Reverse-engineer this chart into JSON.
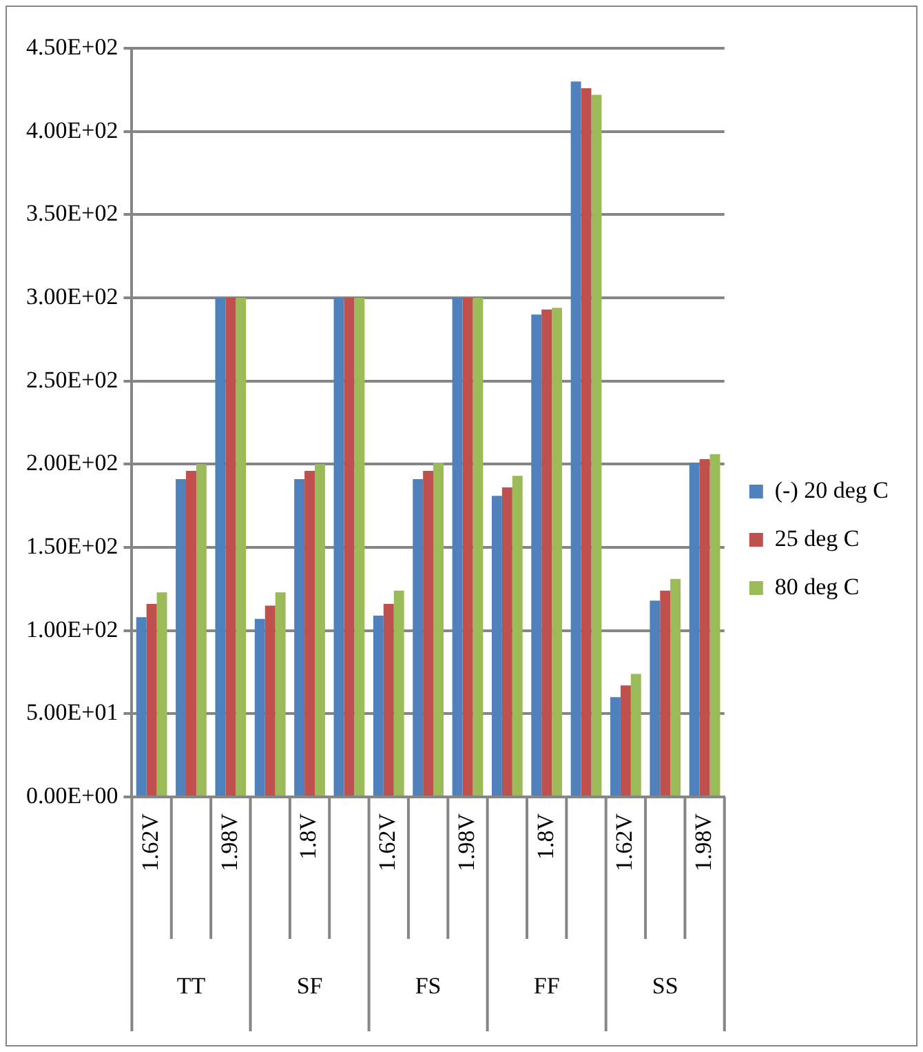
{
  "chart_data": {
    "type": "bar",
    "categories": [
      "1.62V",
      null,
      "1.98V",
      null,
      "1.8V",
      null,
      "1.62V",
      null,
      "1.98V",
      null,
      "1.8V",
      null,
      "1.62V",
      null,
      "1.98V"
    ],
    "series": [
      {
        "name": "(-) 20 deg C",
        "color": "#4f81bd",
        "values": [
          108,
          191,
          300,
          107,
          191,
          300,
          109,
          191,
          300,
          181,
          290,
          430,
          60,
          118,
          201
        ]
      },
      {
        "name": "25 deg C",
        "color": "#c0504d",
        "values": [
          116,
          196,
          300,
          115,
          196,
          300,
          116,
          196,
          300,
          186,
          293,
          426,
          67,
          124,
          203
        ]
      },
      {
        "name": "80 deg C",
        "color": "#9bbb59",
        "values": [
          123,
          200,
          300,
          123,
          200,
          300,
          124,
          201,
          300,
          193,
          294,
          422,
          74,
          131,
          206
        ]
      }
    ],
    "ylim": [
      0,
      450
    ],
    "yticks": [
      {
        "value": 0,
        "label": "0.00E+00"
      },
      {
        "value": 50,
        "label": "5.00E+01"
      },
      {
        "value": 100,
        "label": "1.00E+02"
      },
      {
        "value": 150,
        "label": "1.50E+02"
      },
      {
        "value": 200,
        "label": "2.00E+02"
      },
      {
        "value": 250,
        "label": "2.50E+02"
      },
      {
        "value": 300,
        "label": "3.00E+02"
      },
      {
        "value": 350,
        "label": "3.50E+02"
      },
      {
        "value": 400,
        "label": "4.00E+02"
      },
      {
        "value": 450,
        "label": "4.50E+02"
      }
    ],
    "grid": "y",
    "legend": "right",
    "annotations": [
      "TT",
      "SF",
      "FS",
      "FF",
      "SS"
    ]
  }
}
